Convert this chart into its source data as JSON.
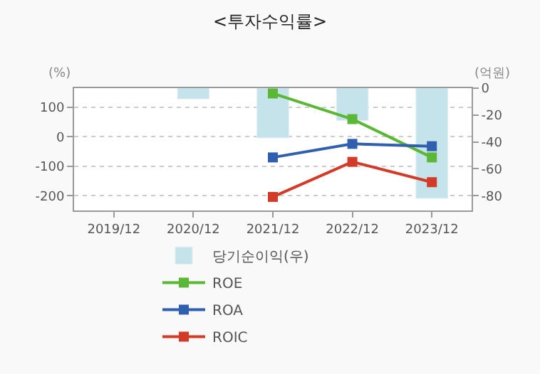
{
  "chart_data": {
    "type": "line",
    "title": "<투자수익률>",
    "ylabel": "(%)",
    "y2label": "(억원)",
    "categories": [
      "2019/12",
      "2020/12",
      "2021/12",
      "2022/12",
      "2023/12"
    ],
    "series": [
      {
        "name": "당기순이익(우)",
        "type": "bar",
        "axis": "y2",
        "color": "#c5e3ea",
        "values": [
          null,
          -8,
          -37,
          -24,
          -82
        ]
      },
      {
        "name": "ROE",
        "color": "#5ab836",
        "values": [
          null,
          null,
          147,
          60,
          -70
        ]
      },
      {
        "name": "ROA",
        "color": "#2f5fae",
        "values": [
          null,
          null,
          -70,
          -24,
          -32
        ]
      },
      {
        "name": "ROIC",
        "color": "#d13b28",
        "values": [
          null,
          null,
          -204,
          -85,
          -154
        ]
      }
    ],
    "ylim": [
      -250,
      165
    ],
    "yticks": [
      -200,
      -100,
      0,
      100
    ],
    "y2lim": [
      -91,
      0
    ],
    "y2ticks": [
      -80,
      -60,
      -40,
      -20,
      0
    ],
    "grid": "y",
    "legend": "bottom",
    "marker": "square",
    "line_style": "solid"
  }
}
